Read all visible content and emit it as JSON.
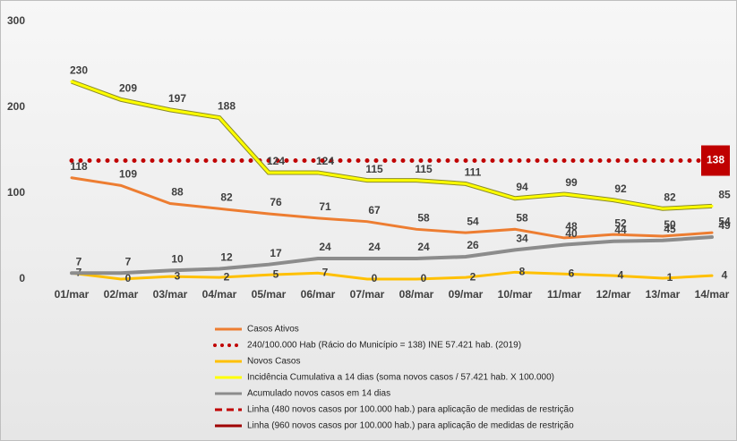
{
  "chart_data": {
    "type": "line",
    "categories": [
      "01/mar",
      "02/mar",
      "03/mar",
      "04/mar",
      "05/mar",
      "06/mar",
      "07/mar",
      "08/mar",
      "09/mar",
      "10/mar",
      "11/mar",
      "12/mar",
      "13/mar",
      "14/mar"
    ],
    "series": [
      {
        "name": "Casos Ativos",
        "color": "#ed7d31",
        "style": "solid",
        "values": [
          118,
          109,
          88,
          82,
          76,
          71,
          67,
          58,
          54,
          58,
          48,
          52,
          50,
          54
        ]
      },
      {
        "name": "240/100.000 Hab (Rácio do Município = 138) INE 57.421 hab. (2019)",
        "color": "#c00000",
        "style": "dotted",
        "values": [
          138,
          138,
          138,
          138,
          138,
          138,
          138,
          138,
          138,
          138,
          138,
          138,
          138,
          138
        ]
      },
      {
        "name": "Novos Casos",
        "color": "#ffc000",
        "style": "solid",
        "values": [
          7,
          0,
          3,
          2,
          5,
          7,
          0,
          0,
          2,
          8,
          6,
          4,
          1,
          4
        ]
      },
      {
        "name": "Incidência Cumulativa a 14 dias (soma novos casos / 57.421 hab. X 100.000)",
        "color": "#ffff00",
        "style": "solid",
        "values": [
          230,
          209,
          197,
          188,
          124,
          124,
          115,
          115,
          111,
          94,
          99,
          92,
          82,
          85
        ]
      },
      {
        "name": "Acumulado novos casos em 14 dias",
        "color": "#8c8c8c",
        "style": "solid",
        "values": [
          7,
          7,
          10,
          12,
          17,
          24,
          24,
          24,
          26,
          34,
          40,
          44,
          45,
          49
        ]
      },
      {
        "name": "Linha (480 novos casos por 100.000 hab.) para aplicação de medidas de restrição",
        "color": "#c00000",
        "style": "dashed",
        "values": [
          null,
          null,
          null,
          null,
          null,
          null,
          null,
          null,
          null,
          null,
          null,
          null,
          null,
          null
        ]
      },
      {
        "name": "Linha (960 novos casos por 100.000 hab.) para aplicação de medidas de restrição",
        "color": "#a00000",
        "style": "solid",
        "values": [
          null,
          null,
          null,
          null,
          null,
          null,
          null,
          null,
          null,
          null,
          null,
          null,
          null,
          null
        ]
      }
    ],
    "ylim": [
      0,
      300
    ],
    "yticks": [
      0,
      100,
      200,
      300
    ],
    "grid": false
  }
}
